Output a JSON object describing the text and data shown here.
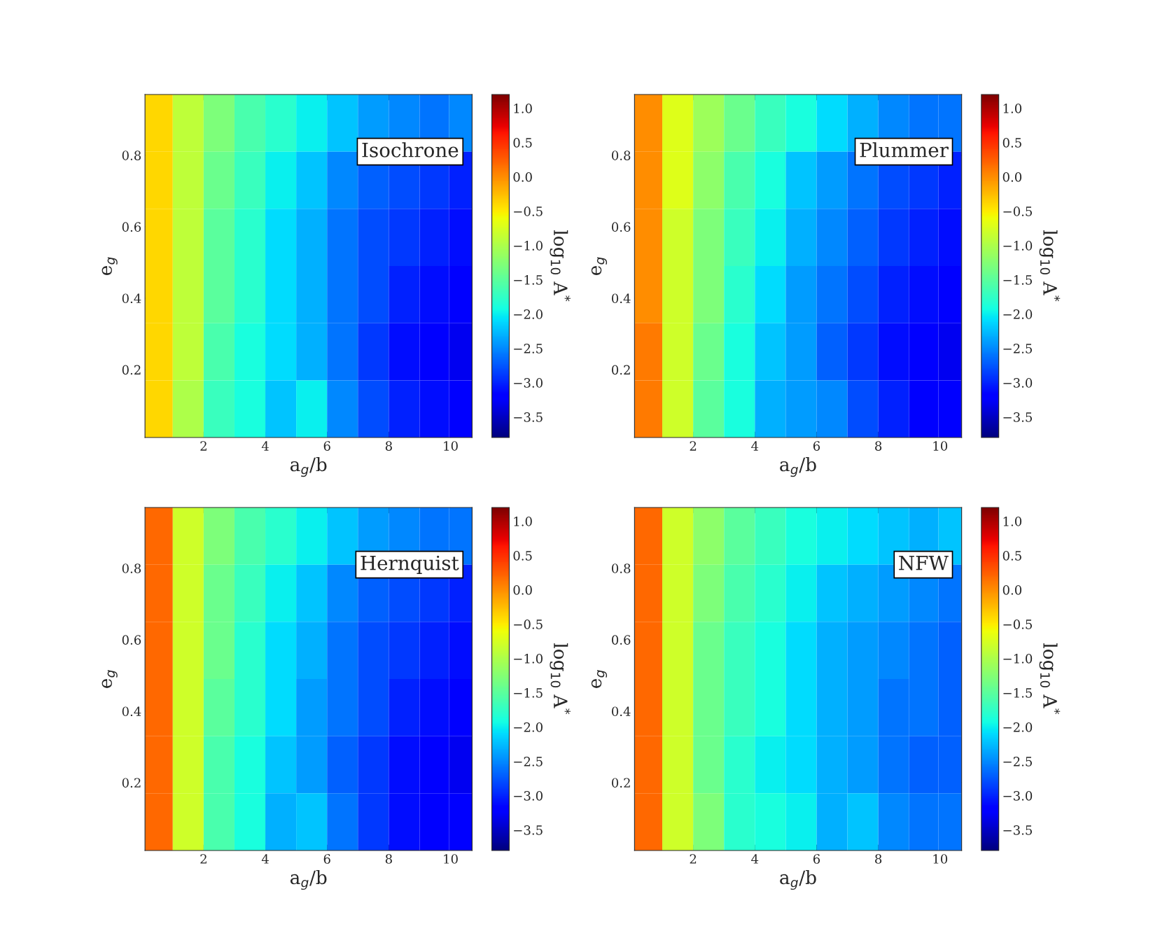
{
  "chart_data": [
    {
      "type": "heatmap",
      "title": "Isochrone",
      "xlabel": "a$_{g}$/b",
      "ylabel": "e$_{g}$",
      "clabel": "log$_{10}$ A$^{*}$",
      "x": [
        0.5,
        1.5,
        2.5,
        3.5,
        4.5,
        5.5,
        6.5,
        7.5,
        8.5,
        9.5,
        10.4
      ],
      "y": [
        0.89,
        0.73,
        0.57,
        0.41,
        0.25,
        0.09
      ],
      "xlim": [
        0.1,
        10.7
      ],
      "ylim": [
        0.01,
        0.97
      ],
      "xticks": [
        2,
        4,
        6,
        8,
        10
      ],
      "yticks": [
        0.2,
        0.4,
        0.6,
        0.8
      ],
      "clim": [
        -3.8,
        1.2
      ],
      "cticks": [
        {
          "value": -3.5,
          "label": "−3.5"
        },
        {
          "value": -3.0,
          "label": "−3.0"
        },
        {
          "value": -2.5,
          "label": "−2.5"
        },
        {
          "value": -2.0,
          "label": "−2.0"
        },
        {
          "value": -1.5,
          "label": "−1.5"
        },
        {
          "value": -1.0,
          "label": "−1.0"
        },
        {
          "value": -0.5,
          "label": "−0.5"
        },
        {
          "value": 0.0,
          "label": "0.0"
        },
        {
          "value": 0.5,
          "label": "0.5"
        },
        {
          "value": 1.0,
          "label": "1.0"
        }
      ],
      "cells": [
        [
          -0.4,
          -0.9,
          -1.3,
          -1.6,
          -1.8,
          -2.0,
          -2.2,
          -2.4,
          -2.5,
          -2.6,
          -2.5
        ],
        [
          -0.4,
          -0.9,
          -1.4,
          -1.7,
          -2.0,
          -2.2,
          -2.5,
          -2.7,
          -2.8,
          -2.9,
          -3.0
        ],
        [
          -0.4,
          -0.9,
          -1.5,
          -1.8,
          -2.1,
          -2.3,
          -2.6,
          -2.8,
          -2.9,
          -3.0,
          -3.1
        ],
        [
          -0.4,
          -0.9,
          -1.5,
          -1.8,
          -2.1,
          -2.3,
          -2.6,
          -2.8,
          -3.0,
          -3.1,
          -3.2
        ],
        [
          -0.4,
          -0.9,
          -1.6,
          -1.9,
          -2.1,
          -2.3,
          -2.6,
          -2.9,
          -3.1,
          -3.2,
          -3.3
        ],
        [
          -0.4,
          -1.0,
          -1.7,
          -1.9,
          -2.2,
          -2.0,
          -2.5,
          -2.8,
          -3.0,
          -3.1,
          -3.2
        ]
      ],
      "grid": false
    },
    {
      "type": "heatmap",
      "title": "Plummer",
      "xlabel": "a$_{g}$/b",
      "ylabel": "e$_{g}$",
      "clabel": "log$_{10}$ A$^{*}$",
      "x": [
        0.5,
        1.5,
        2.5,
        3.5,
        4.5,
        5.5,
        6.5,
        7.5,
        8.5,
        9.5,
        10.4
      ],
      "y": [
        0.89,
        0.73,
        0.57,
        0.41,
        0.25,
        0.09
      ],
      "xlim": [
        0.1,
        10.7
      ],
      "ylim": [
        0.01,
        0.97
      ],
      "xticks": [
        2,
        4,
        6,
        8,
        10
      ],
      "yticks": [
        0.2,
        0.4,
        0.6,
        0.8
      ],
      "clim": [
        -3.8,
        1.2
      ],
      "cticks": [
        {
          "value": -3.5,
          "label": "−3.5"
        },
        {
          "value": -3.0,
          "label": "−3.0"
        },
        {
          "value": -2.5,
          "label": "−2.5"
        },
        {
          "value": -2.0,
          "label": "−2.0"
        },
        {
          "value": -1.5,
          "label": "−1.5"
        },
        {
          "value": -1.0,
          "label": "−1.0"
        },
        {
          "value": -0.5,
          "label": "−0.5"
        },
        {
          "value": 0.0,
          "label": "0.0"
        },
        {
          "value": 0.5,
          "label": "0.5"
        },
        {
          "value": 1.0,
          "label": "1.0"
        }
      ],
      "cells": [
        [
          0.0,
          -0.7,
          -1.1,
          -1.4,
          -1.7,
          -1.9,
          -2.1,
          -2.3,
          -2.5,
          -2.6,
          -2.6
        ],
        [
          0.0,
          -0.7,
          -1.2,
          -1.6,
          -1.9,
          -2.2,
          -2.4,
          -2.6,
          -2.8,
          -2.9,
          -3.0
        ],
        [
          0.0,
          -0.8,
          -1.3,
          -1.7,
          -2.0,
          -2.3,
          -2.5,
          -2.7,
          -2.9,
          -3.0,
          -3.1
        ],
        [
          0.0,
          -0.8,
          -1.3,
          -1.8,
          -2.1,
          -2.4,
          -2.6,
          -2.8,
          -3.0,
          -3.1,
          -3.2
        ],
        [
          0.1,
          -0.8,
          -1.4,
          -1.9,
          -2.2,
          -2.4,
          -2.7,
          -2.9,
          -3.1,
          -3.2,
          -3.3
        ],
        [
          0.1,
          -0.8,
          -1.5,
          -1.9,
          -2.3,
          -2.4,
          -2.5,
          -2.8,
          -3.0,
          -3.2,
          -3.2
        ]
      ],
      "grid": false
    },
    {
      "type": "heatmap",
      "title": "Hernquist",
      "xlabel": "a$_{g}$/b",
      "ylabel": "e$_{g}$",
      "clabel": "log$_{10}$ A$^{*}$",
      "x": [
        0.5,
        1.5,
        2.5,
        3.5,
        4.5,
        5.5,
        6.5,
        7.5,
        8.5,
        9.5,
        10.4
      ],
      "y": [
        0.89,
        0.73,
        0.57,
        0.41,
        0.25,
        0.09
      ],
      "xlim": [
        0.1,
        10.7
      ],
      "ylim": [
        0.01,
        0.97
      ],
      "xticks": [
        2,
        4,
        6,
        8,
        10
      ],
      "yticks": [
        0.2,
        0.4,
        0.6,
        0.8
      ],
      "clim": [
        -3.8,
        1.2
      ],
      "cticks": [
        {
          "value": -3.5,
          "label": "−3.5"
        },
        {
          "value": -3.0,
          "label": "−3.0"
        },
        {
          "value": -2.5,
          "label": "−2.5"
        },
        {
          "value": -2.0,
          "label": "−2.0"
        },
        {
          "value": -1.5,
          "label": "−1.5"
        },
        {
          "value": -1.0,
          "label": "−1.0"
        },
        {
          "value": -0.5,
          "label": "−0.5"
        },
        {
          "value": 0.0,
          "label": "0.0"
        },
        {
          "value": 0.5,
          "label": "0.5"
        },
        {
          "value": 1.0,
          "label": "1.0"
        }
      ],
      "cells": [
        [
          0.2,
          -0.8,
          -1.3,
          -1.6,
          -1.8,
          -2.0,
          -2.2,
          -2.4,
          -2.5,
          -2.6,
          -2.6
        ],
        [
          0.2,
          -0.8,
          -1.4,
          -1.7,
          -2.0,
          -2.2,
          -2.5,
          -2.7,
          -2.8,
          -2.9,
          -3.0
        ],
        [
          0.2,
          -0.8,
          -1.4,
          -1.8,
          -2.1,
          -2.3,
          -2.6,
          -2.8,
          -2.9,
          -3.0,
          -3.1
        ],
        [
          0.2,
          -0.8,
          -1.5,
          -1.8,
          -2.1,
          -2.4,
          -2.6,
          -2.8,
          -3.0,
          -3.1,
          -3.2
        ],
        [
          0.2,
          -0.8,
          -1.6,
          -1.9,
          -2.2,
          -2.4,
          -2.7,
          -2.9,
          -3.1,
          -3.2,
          -3.3
        ],
        [
          0.2,
          -0.8,
          -1.6,
          -1.9,
          -2.3,
          -2.2,
          -2.6,
          -2.9,
          -3.1,
          -3.2,
          -3.2
        ]
      ],
      "grid": false
    },
    {
      "type": "heatmap",
      "title": "NFW",
      "xlabel": "a$_{g}$/b",
      "ylabel": "e$_{g}$",
      "clabel": "log$_{10}$ A$^{*}$",
      "x": [
        0.5,
        1.5,
        2.5,
        3.5,
        4.5,
        5.5,
        6.5,
        7.5,
        8.5,
        9.5,
        10.4
      ],
      "y": [
        0.89,
        0.73,
        0.57,
        0.41,
        0.25,
        0.09
      ],
      "xlim": [
        0.1,
        10.7
      ],
      "ylim": [
        0.01,
        0.97
      ],
      "xticks": [
        2,
        4,
        6,
        8,
        10
      ],
      "yticks": [
        0.2,
        0.4,
        0.6,
        0.8
      ],
      "clim": [
        -3.8,
        1.2
      ],
      "cticks": [
        {
          "value": -3.5,
          "label": "−3.5"
        },
        {
          "value": -3.0,
          "label": "−3.0"
        },
        {
          "value": -2.5,
          "label": "−2.5"
        },
        {
          "value": -2.0,
          "label": "−2.0"
        },
        {
          "value": -1.5,
          "label": "−1.5"
        },
        {
          "value": -1.0,
          "label": "−1.0"
        },
        {
          "value": -0.5,
          "label": "−0.5"
        },
        {
          "value": 0.0,
          "label": "0.0"
        },
        {
          "value": 0.5,
          "label": "0.5"
        },
        {
          "value": 1.0,
          "label": "1.0"
        }
      ],
      "cells": [
        [
          0.2,
          -0.8,
          -1.2,
          -1.5,
          -1.7,
          -1.9,
          -2.0,
          -2.1,
          -2.2,
          -2.3,
          -2.2
        ],
        [
          0.2,
          -0.8,
          -1.3,
          -1.6,
          -1.8,
          -2.0,
          -2.2,
          -2.3,
          -2.4,
          -2.5,
          -2.6
        ],
        [
          0.2,
          -0.8,
          -1.4,
          -1.7,
          -1.9,
          -2.1,
          -2.3,
          -2.4,
          -2.5,
          -2.6,
          -2.7
        ],
        [
          0.2,
          -0.8,
          -1.4,
          -1.7,
          -1.9,
          -2.1,
          -2.3,
          -2.4,
          -2.6,
          -2.6,
          -2.7
        ],
        [
          0.2,
          -0.8,
          -1.4,
          -1.8,
          -2.0,
          -2.1,
          -2.3,
          -2.4,
          -2.6,
          -2.7,
          -2.7
        ],
        [
          0.2,
          -0.8,
          -1.3,
          -1.8,
          -1.9,
          -2.0,
          -2.3,
          -2.2,
          -2.5,
          -2.6,
          -2.6
        ]
      ],
      "grid": false
    }
  ]
}
